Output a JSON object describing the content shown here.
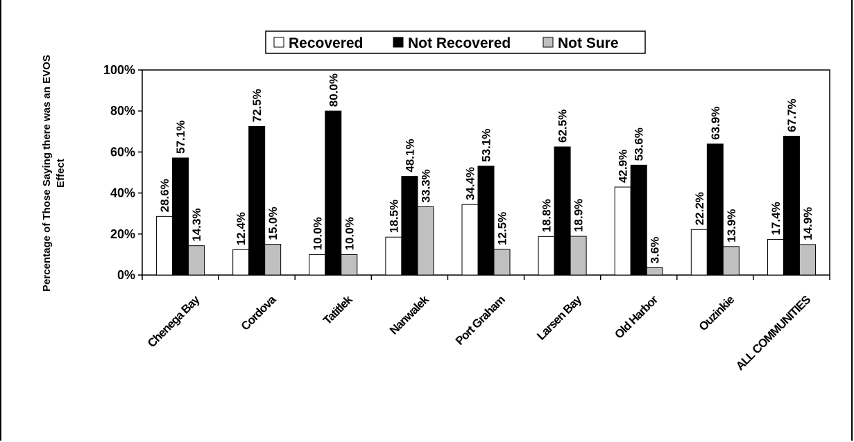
{
  "chart_data": {
    "type": "bar",
    "ylabel_line1": "Percentage of Those Saying there was an EVOS",
    "ylabel_line2": "Effect",
    "ylim": [
      0,
      100
    ],
    "yticks": [
      "0%",
      "20%",
      "40%",
      "60%",
      "80%",
      "100%"
    ],
    "yticks_values": [
      0,
      20,
      40,
      60,
      80,
      100
    ],
    "legend_position": "top-center",
    "categories": [
      "Chenega Bay",
      "Cordova",
      "Tatitlek",
      "Nanwalek",
      "Port Graham",
      "Larsen Bay",
      "Old Harbor",
      "Ouzinkie",
      "ALL COMMUNITIES"
    ],
    "series": [
      {
        "name": "Recovered",
        "color": "#ffffff",
        "values": [
          28.6,
          12.4,
          10.0,
          18.5,
          34.4,
          18.8,
          42.9,
          22.2,
          17.4
        ],
        "labels": [
          "28.6%",
          "12.4%",
          "10.0%",
          "18.5%",
          "34.4%",
          "18.8%",
          "42.9%",
          "22.2%",
          "17.4%"
        ]
      },
      {
        "name": "Not Recovered",
        "color": "#000000",
        "values": [
          57.1,
          72.5,
          80.0,
          48.1,
          53.1,
          62.5,
          53.6,
          63.9,
          67.7
        ],
        "labels": [
          "57.1%",
          "72.5%",
          "80.0%",
          "48.1%",
          "53.1%",
          "62.5%",
          "53.6%",
          "63.9%",
          "67.7%"
        ]
      },
      {
        "name": "Not Sure",
        "color": "#c0c0c0",
        "values": [
          14.3,
          15.0,
          10.0,
          33.3,
          12.5,
          18.9,
          3.6,
          13.9,
          14.9
        ],
        "labels": [
          "14.3%",
          "15.0%",
          "10.0%",
          "33.3%",
          "12.5%",
          "18.9%",
          "3.6%",
          "13.9%",
          "14.9%"
        ]
      }
    ]
  }
}
